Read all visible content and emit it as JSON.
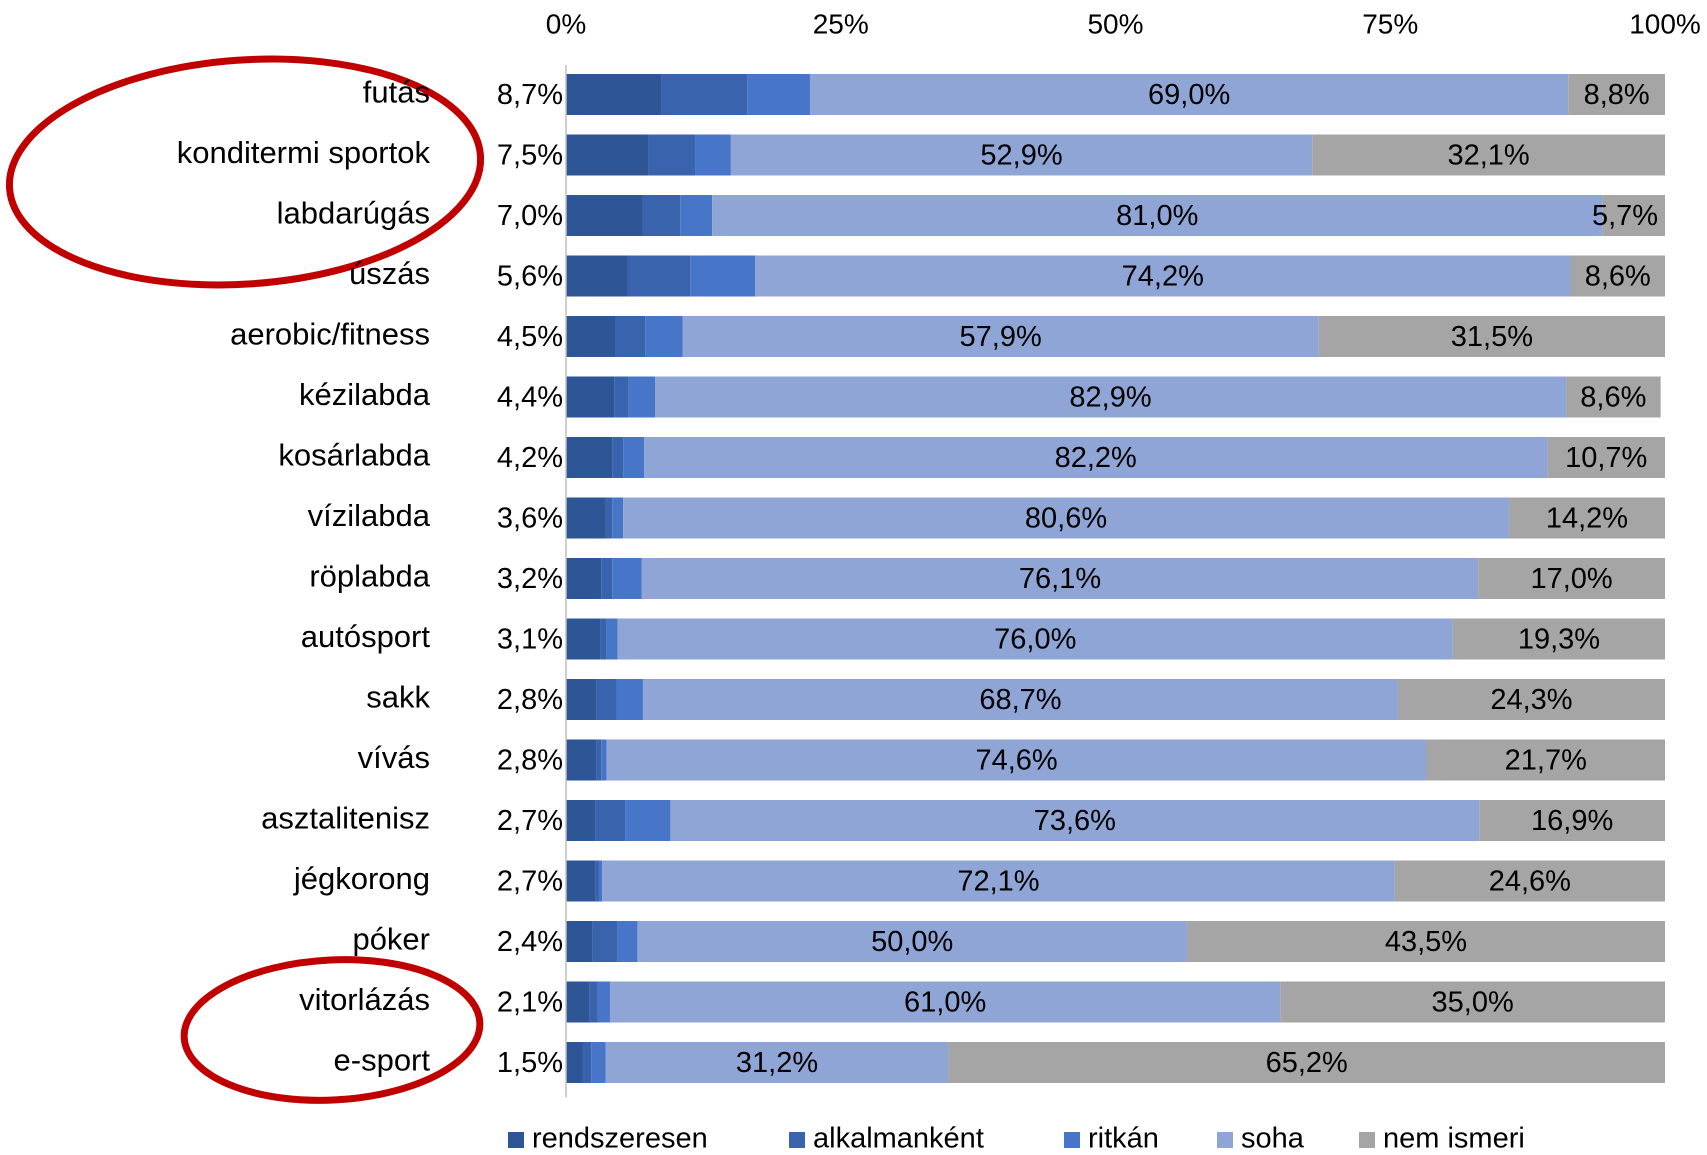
{
  "chart_data": {
    "type": "stacked_bar_horizontal",
    "categories": [
      "futás",
      "konditermi sportok",
      "labdarúgás",
      "úszás",
      "aerobic/fitness",
      "kézilabda",
      "kosárlabda",
      "vízilabda",
      "röplabda",
      "autósport",
      "sakk",
      "vívás",
      "asztalitenisz",
      "jégkorong",
      "póker",
      "vitorlázás",
      "e-sport"
    ],
    "series": [
      {
        "name": "rendszeresen",
        "color": "#2e5596",
        "values": [
          8.7,
          7.5,
          7.0,
          5.6,
          4.5,
          4.4,
          4.2,
          3.6,
          3.2,
          3.1,
          2.8,
          2.8,
          2.7,
          2.7,
          2.4,
          2.1,
          1.5
        ],
        "value_labels": [
          "8,7%",
          "7,5%",
          "7,0%",
          "5,6%",
          "4,5%",
          "4,4%",
          "4,2%",
          "3,6%",
          "3,2%",
          "3,1%",
          "2,8%",
          "2,8%",
          "2,7%",
          "2,7%",
          "2,4%",
          "2,1%",
          "1,5%"
        ]
      },
      {
        "name": "alkalmanként",
        "color": "#3a63ad",
        "values": [
          7.8,
          4.3,
          3.4,
          5.7,
          2.7,
          1.3,
          1.0,
          0.6,
          1.0,
          0.6,
          1.8,
          0.4,
          2.7,
          0.3,
          2.3,
          0.8,
          0.8
        ]
      },
      {
        "name": "ritkán",
        "color": "#4776c8",
        "values": [
          5.7,
          3.2,
          2.9,
          5.9,
          3.4,
          2.4,
          1.9,
          1.0,
          2.7,
          1.0,
          2.4,
          0.5,
          4.1,
          0.3,
          1.8,
          1.1,
          1.3
        ]
      },
      {
        "name": "soha",
        "color": "#8fa5d6",
        "values": [
          69.0,
          52.9,
          81.0,
          74.2,
          57.9,
          82.9,
          82.2,
          80.6,
          76.1,
          76.0,
          68.7,
          74.6,
          73.6,
          72.1,
          50.0,
          61.0,
          31.2
        ],
        "value_labels": [
          "69,0%",
          "52,9%",
          "81,0%",
          "74,2%",
          "57,9%",
          "82,9%",
          "82,2%",
          "80,6%",
          "76,1%",
          "76,0%",
          "68,7%",
          "74,6%",
          "73,6%",
          "72,1%",
          "50,0%",
          "61,0%",
          "31,2%"
        ]
      },
      {
        "name": "nem ismeri",
        "color": "#a5a5a5",
        "values": [
          8.8,
          32.1,
          5.7,
          8.6,
          31.5,
          8.6,
          10.7,
          14.2,
          17.0,
          19.3,
          24.3,
          21.7,
          16.9,
          24.6,
          43.5,
          35.0,
          65.2
        ],
        "value_labels": [
          "8,8%",
          "32,1%",
          "5,7%",
          "8,6%",
          "31,5%",
          "8,6%",
          "10,7%",
          "14,2%",
          "17,0%",
          "19,3%",
          "24,3%",
          "21,7%",
          "16,9%",
          "24,6%",
          "43,5%",
          "35,0%",
          "65,2%"
        ]
      }
    ],
    "xlim": [
      0,
      100
    ],
    "xticks": [
      {
        "value": 0,
        "label": "0%"
      },
      {
        "value": 25,
        "label": "25%"
      },
      {
        "value": 50,
        "label": "50%"
      },
      {
        "value": 75,
        "label": "75%"
      },
      {
        "value": 100,
        "label": "100%"
      }
    ],
    "legend": "bottom"
  }
}
